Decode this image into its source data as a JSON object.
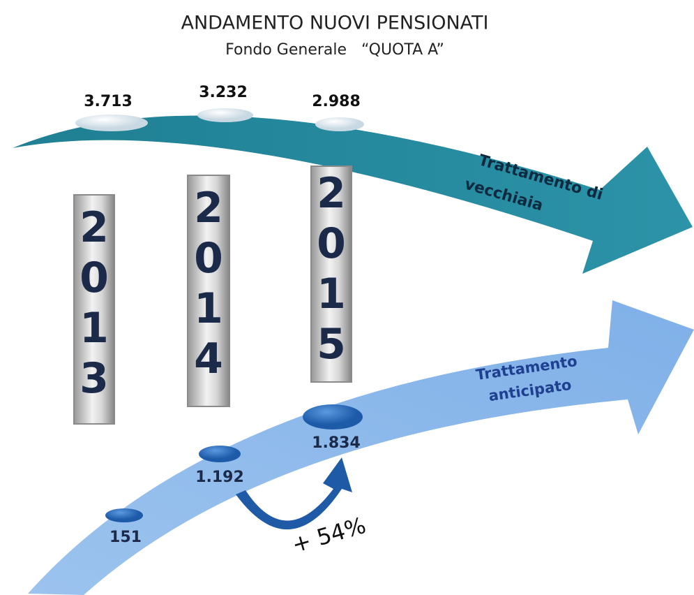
{
  "header": {
    "title": "ANDAMENTO NUOVI PENSIONATI",
    "subtitle": "Fondo Generale   “QUOTA A”"
  },
  "years": [
    "2013",
    "2014",
    "2015"
  ],
  "arrows": [
    {
      "label": [
        "Trattamento di",
        "vecchiaia"
      ],
      "values": [
        "3.713",
        "3.232",
        "2.988"
      ]
    },
    {
      "label": [
        "Trattamento",
        "anticipato"
      ],
      "values": [
        "151",
        "1.192",
        "1.834"
      ]
    }
  ],
  "annotation": "+ 54%"
}
